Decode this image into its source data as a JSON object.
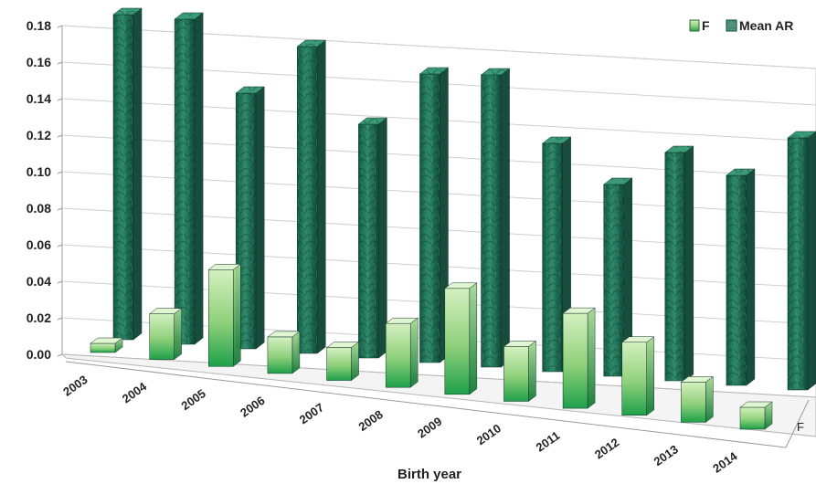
{
  "chart_data": {
    "type": "bar",
    "categories": [
      "2003",
      "2004",
      "2005",
      "2006",
      "2007",
      "2008",
      "2009",
      "2010",
      "2011",
      "2012",
      "2013",
      "2014"
    ],
    "series": [
      {
        "name": "F",
        "values": [
          0.005,
          0.025,
          0.053,
          0.02,
          0.018,
          0.035,
          0.058,
          0.03,
          0.052,
          0.04,
          0.022,
          0.012
        ],
        "color": "#9fd68a"
      },
      {
        "name": "Mean AR",
        "values": [
          0.178,
          0.178,
          0.14,
          0.168,
          0.128,
          0.158,
          0.16,
          0.125,
          0.105,
          0.125,
          0.115,
          0.138
        ],
        "color": "#1f6e55"
      }
    ],
    "xlabel": "Birth year",
    "ylabel": "",
    "ylim": [
      0,
      0.18
    ],
    "yticks": [
      "0.00",
      "0.02",
      "0.04",
      "0.06",
      "0.08",
      "0.10",
      "0.12",
      "0.14",
      "0.16",
      "0.18"
    ],
    "depth_label": "F",
    "grid": true,
    "legend_position": "top-right",
    "style": "3d-column"
  }
}
